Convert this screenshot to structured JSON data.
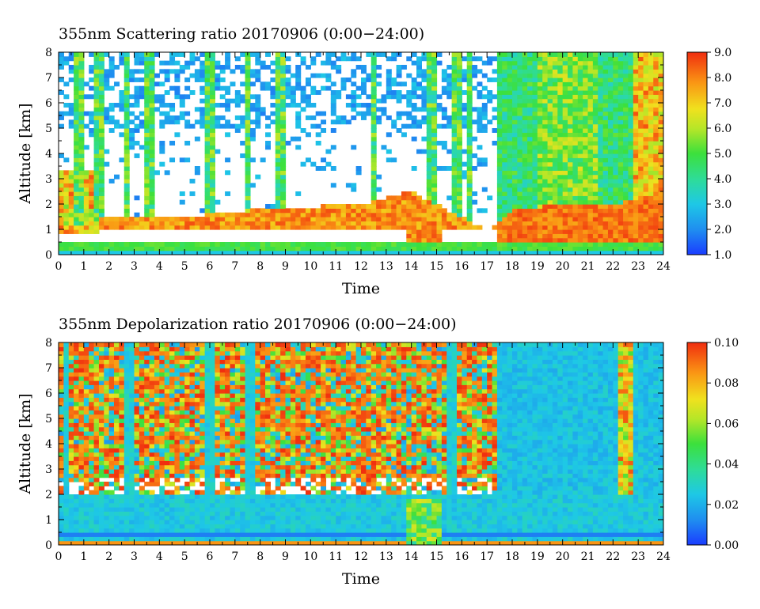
{
  "chart_data": [
    {
      "type": "heatmap",
      "title": "355nm Scattering ratio  20170906 (0:00−24:00)",
      "xlabel": "Time",
      "ylabel": "Altitude [km]",
      "xlim": [
        0,
        24
      ],
      "ylim": [
        0,
        8
      ],
      "xticks": [
        "0",
        "1",
        "2",
        "3",
        "4",
        "5",
        "6",
        "7",
        "8",
        "9",
        "10",
        "11",
        "12",
        "13",
        "14",
        "15",
        "16",
        "17",
        "18",
        "19",
        "20",
        "21",
        "22",
        "23",
        "24"
      ],
      "yticks": [
        "0",
        "1",
        "2",
        "3",
        "4",
        "5",
        "6",
        "7",
        "8"
      ],
      "colorbar": {
        "min": 1.0,
        "max": 9.0,
        "ticks": [
          "1.0",
          "2.0",
          "3.0",
          "4.0",
          "5.0",
          "6.0",
          "7.0",
          "8.0",
          "9.0"
        ]
      },
      "features": {
        "near_ground_layer_km": [
          0.2,
          0.4
        ],
        "boundary_layer_top_km_by_hour": [
          [
            0,
            1.0
          ],
          [
            2,
            1.5
          ],
          [
            5,
            1.5
          ],
          [
            8,
            1.8
          ],
          [
            12,
            2.0
          ],
          [
            14,
            2.5
          ],
          [
            17,
            1.0
          ],
          [
            18,
            1.8
          ],
          [
            20,
            2.0
          ],
          [
            22,
            2.0
          ],
          [
            24,
            2.5
          ]
        ],
        "dense_aerosol_after_hour": 17.5,
        "high_values_hours": [
          [
            0.3,
            1.6
          ],
          [
            22.8,
            24
          ]
        ]
      }
    },
    {
      "type": "heatmap",
      "title": "355nm Depolarization ratio  20170906 (0:00−24:00)",
      "xlabel": "Time",
      "ylabel": "Altitude [km]",
      "xlim": [
        0,
        24
      ],
      "ylim": [
        0,
        8
      ],
      "xticks": [
        "0",
        "1",
        "2",
        "3",
        "4",
        "5",
        "6",
        "7",
        "8",
        "9",
        "10",
        "11",
        "12",
        "13",
        "14",
        "15",
        "16",
        "17",
        "18",
        "19",
        "20",
        "21",
        "22",
        "23",
        "24"
      ],
      "yticks": [
        "0",
        "1",
        "2",
        "3",
        "4",
        "5",
        "6",
        "7",
        "8"
      ],
      "colorbar": {
        "min": 0.0,
        "max": 0.1,
        "ticks": [
          "0.00",
          "0.02",
          "0.04",
          "0.06",
          "0.08",
          "0.10"
        ]
      },
      "features": {
        "low_depol_below_km": 2.0,
        "noisy_high_depol_until_hour": 17.5,
        "clear_low_depol_after_hour": 17.5,
        "feature_near_hour": 22.5
      }
    }
  ]
}
